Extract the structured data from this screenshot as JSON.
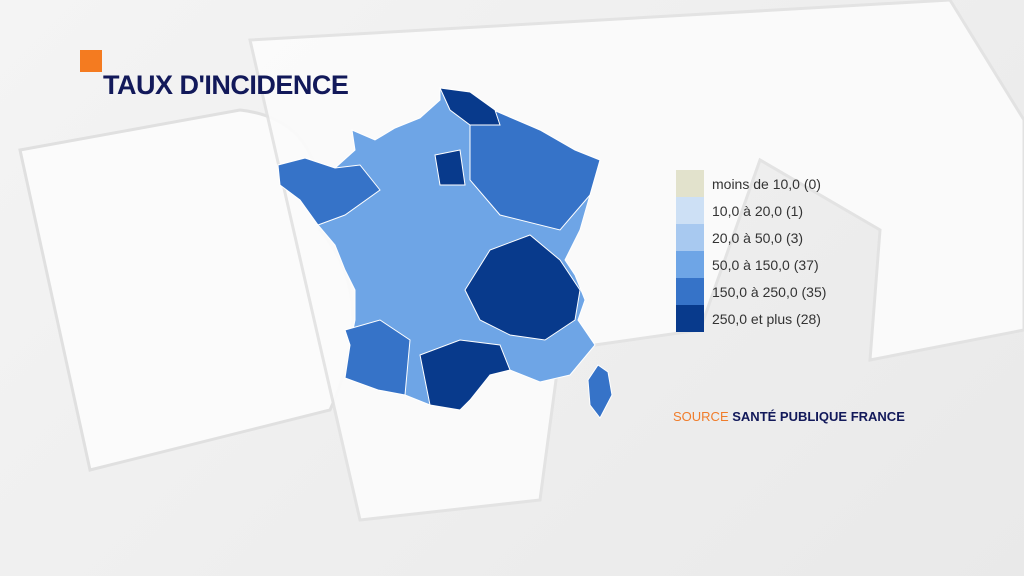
{
  "title": "TAUX D'INCIDENCE",
  "colors": {
    "accent": "#f47b20",
    "title": "#12195a"
  },
  "legend": [
    {
      "label": "moins de 10,0 (0)",
      "color": "#e2e2cc"
    },
    {
      "label": "10,0 à 20,0 (1)",
      "color": "#cde0f5"
    },
    {
      "label": "20,0 à 50,0 (3)",
      "color": "#a8c9f0"
    },
    {
      "label": "50,0 à 150,0 (37)",
      "color": "#6ea5e6"
    },
    {
      "label": "150,0 à 250,0 (35)",
      "color": "#3673c8"
    },
    {
      "label": "250,0 et plus (28)",
      "color": "#083a8c"
    }
  ],
  "source": {
    "prefix": "SOURCE",
    "name": "SANTÉ PUBLIQUE FRANCE"
  }
}
